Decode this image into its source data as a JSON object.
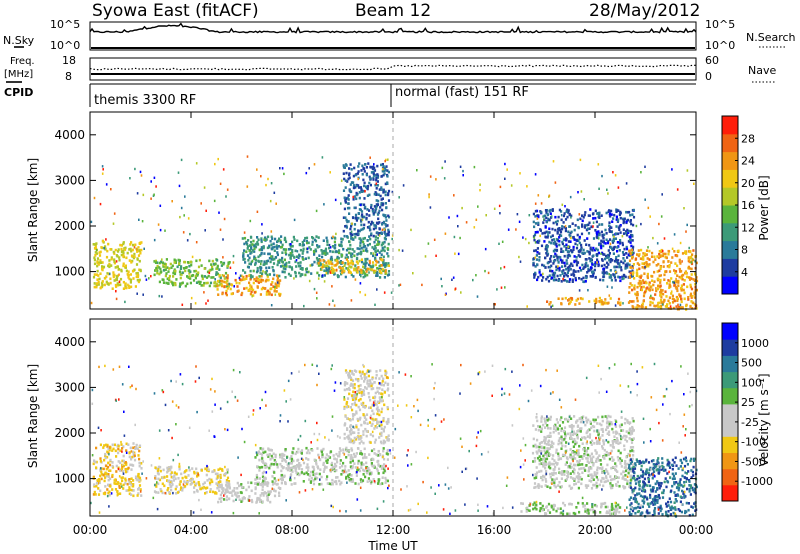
{
  "header": {
    "title": "Syowa East (fitACF)",
    "beam": "Beam 12",
    "date": "28/May/2012"
  },
  "chart_data": [
    {
      "type": "line",
      "panel": "noise",
      "left_label": "N.Sky",
      "right_label": "N.Search",
      "yticks_left": [
        "10^5",
        "10^0"
      ],
      "yticks_right": [
        "10^5",
        "10^0"
      ]
    },
    {
      "type": "line",
      "panel": "frequency-nave",
      "left_label_line1": "Freq.",
      "left_label_line2": "[MHz]",
      "right_label": "Nave",
      "yticks_left": [
        "18",
        "8"
      ],
      "yticks_right": [
        "60",
        "0"
      ],
      "freq_mhz": 11,
      "nave_approx": 30
    },
    {
      "type": "table",
      "panel": "cpid",
      "label": "CPID",
      "segments": [
        {
          "text": "themis 3300 RF",
          "start_hour": 0,
          "end_hour": 12
        },
        {
          "text": "normal (fast) 151 RF",
          "start_hour": 12,
          "end_hour": 24
        }
      ]
    },
    {
      "type": "heatmap",
      "panel": "power",
      "ylabel": "Slant Range [km]",
      "yticks": [
        "1000",
        "2000",
        "3000",
        "4000"
      ],
      "ylim": [
        180,
        4500
      ],
      "xlim": [
        0,
        24
      ],
      "colorbar_label": "Power [dB]",
      "colorbar_ticks": [
        "4",
        "8",
        "12",
        "16",
        "20",
        "24",
        "28"
      ],
      "colorbar_range": [
        0,
        30
      ],
      "colors": [
        "#0000ff",
        "#1e3ca0",
        "#2a7a9a",
        "#3c9a78",
        "#5ab43c",
        "#b4c828",
        "#f0c814",
        "#f09614",
        "#f06414",
        "#ff1e0a"
      ],
      "regions": [
        {
          "t0": 0.1,
          "t1": 2.0,
          "r0": 650,
          "r1": 1700,
          "level": 18
        },
        {
          "t0": 2.5,
          "t1": 5.5,
          "r0": 700,
          "r1": 1300,
          "level": 14
        },
        {
          "t0": 5.0,
          "t1": 7.5,
          "r0": 500,
          "r1": 950,
          "level": 22
        },
        {
          "t0": 6.0,
          "t1": 11.8,
          "r0": 900,
          "r1": 1800,
          "level": 10
        },
        {
          "t0": 9.0,
          "t1": 11.8,
          "r0": 1000,
          "r1": 1300,
          "level": 20
        },
        {
          "t0": 10.0,
          "t1": 11.8,
          "r0": 1800,
          "r1": 3400,
          "level": 6
        },
        {
          "t0": 17.5,
          "t1": 21.5,
          "r0": 800,
          "r1": 2400,
          "level": 5
        },
        {
          "t0": 18.0,
          "t1": 21.0,
          "r0": 300,
          "r1": 450,
          "level": 22
        },
        {
          "t0": 21.3,
          "t1": 24.0,
          "r0": 200,
          "r1": 1500,
          "level": 22
        }
      ]
    },
    {
      "type": "heatmap",
      "panel": "velocity",
      "ylabel": "Slant Range [km]",
      "yticks": [
        "1000",
        "2000",
        "3000",
        "4000"
      ],
      "ylim": [
        180,
        4500
      ],
      "xlim": [
        0,
        24
      ],
      "xticks": [
        "00:00",
        "04:00",
        "08:00",
        "12:00",
        "16:00",
        "20:00",
        "00:00"
      ],
      "xlabel": "Time UT",
      "colorbar_label": "Velocity [m s⁻¹]",
      "colorbar_ticks": [
        "-1000",
        "-500",
        "-100",
        "-25",
        "25",
        "100",
        "500",
        "1000"
      ],
      "colorbar_range": [
        -1200,
        1200
      ],
      "colors": [
        "#ff1e0a",
        "#f06414",
        "#f09614",
        "#f0c814",
        "#c8c8c8",
        "#c8c8c8",
        "#5ab43c",
        "#3c9a78",
        "#2a7a9a",
        "#1e3ca0",
        "#0000ff"
      ],
      "regions": [
        {
          "t0": 0.1,
          "t1": 2.0,
          "r0": 650,
          "r1": 1800,
          "level": -400
        },
        {
          "t0": 2.5,
          "t1": 5.5,
          "r0": 700,
          "r1": 1300,
          "level": -300
        },
        {
          "t0": 5.0,
          "t1": 7.5,
          "r0": 500,
          "r1": 950,
          "level": -60
        },
        {
          "t0": 6.5,
          "t1": 11.8,
          "r0": 900,
          "r1": 1700,
          "level": 0
        },
        {
          "t0": 10.0,
          "t1": 11.8,
          "r0": 1800,
          "r1": 3400,
          "level": -200
        },
        {
          "t0": 17.5,
          "t1": 21.5,
          "r0": 800,
          "r1": 2400,
          "level": 0
        },
        {
          "t0": 17.0,
          "t1": 21.0,
          "r0": 250,
          "r1": 500,
          "level": 120
        },
        {
          "t0": 21.3,
          "t1": 24.0,
          "r0": 200,
          "r1": 1500,
          "level": 700
        }
      ]
    }
  ]
}
